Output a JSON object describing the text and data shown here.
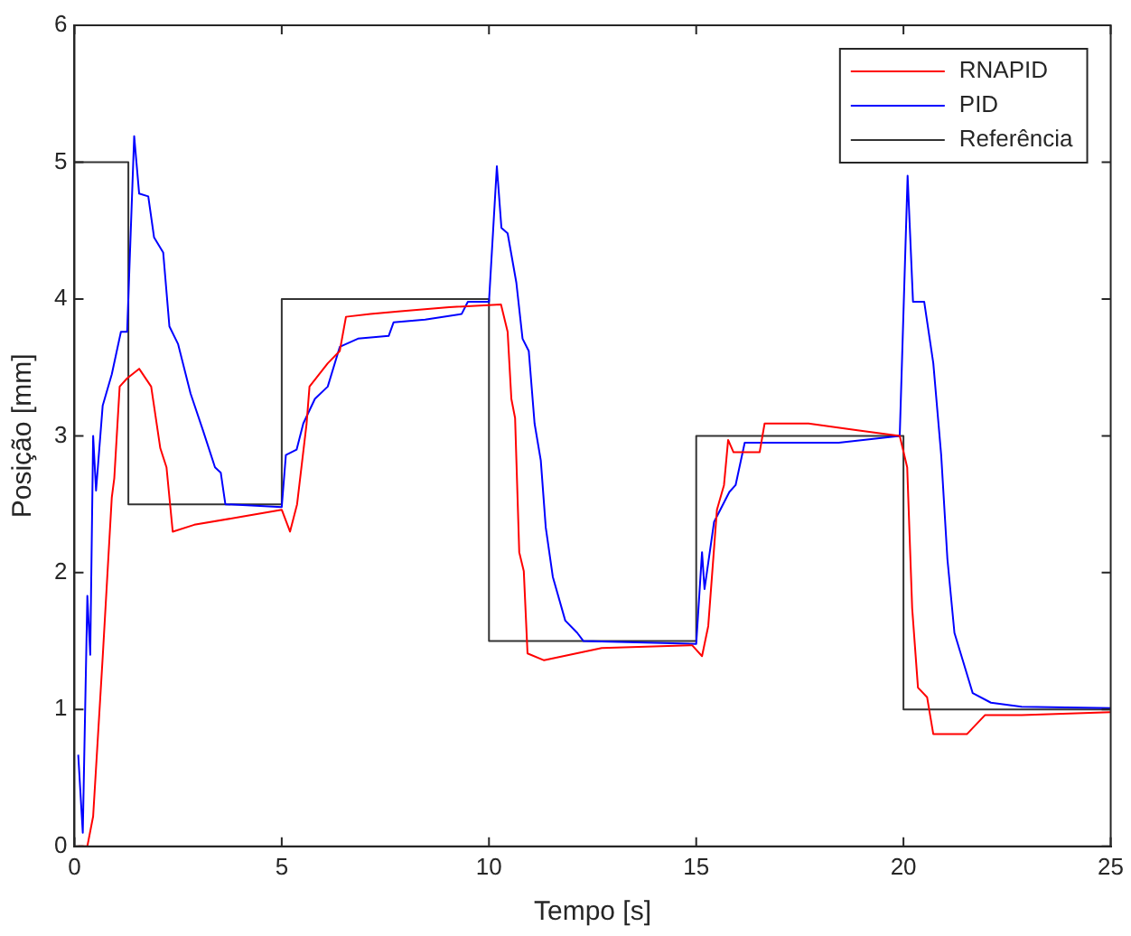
{
  "chart_data": {
    "type": "line",
    "xlabel": "Tempo [s]",
    "ylabel": "Posição [mm]",
    "xlim": [
      0,
      25
    ],
    "ylim": [
      0,
      6
    ],
    "xticks": [
      0,
      5,
      10,
      15,
      20,
      25
    ],
    "yticks": [
      0,
      1,
      2,
      3,
      4,
      5,
      6
    ],
    "grid": false,
    "legend": "top right",
    "marker": "none",
    "line_style": "solid",
    "series": [
      {
        "name": "RNAPID",
        "color": "#ff0000",
        "x": [
          0.09,
          0.31,
          0.45,
          0.68,
          0.9,
          0.96,
          1.09,
          1.27,
          1.56,
          1.85,
          2.07,
          2.22,
          2.37,
          2.89,
          4.05,
          5.0,
          5.2,
          5.37,
          5.6,
          5.67,
          6.11,
          6.4,
          6.55,
          7.14,
          7.87,
          9.04,
          10.29,
          10.45,
          10.54,
          10.63,
          10.73,
          10.84,
          10.93,
          11.33,
          12.72,
          14.9,
          15.14,
          15.29,
          15.5,
          15.67,
          15.77,
          15.9,
          16.53,
          16.65,
          17.71,
          18.89,
          19.91,
          20.09,
          20.21,
          20.35,
          20.57,
          20.72,
          21.53,
          21.97,
          22.85,
          25
        ],
        "values": [
          0,
          0,
          0.22,
          1.38,
          2.55,
          2.69,
          3.36,
          3.42,
          3.49,
          3.36,
          2.91,
          2.77,
          2.3,
          2.35,
          2.41,
          2.46,
          2.3,
          2.5,
          3.09,
          3.36,
          3.53,
          3.62,
          3.87,
          3.89,
          3.91,
          3.94,
          3.96,
          3.76,
          3.27,
          3.13,
          2.15,
          2.01,
          1.41,
          1.36,
          1.45,
          1.47,
          1.39,
          1.61,
          2.46,
          2.64,
          2.97,
          2.88,
          2.88,
          3.09,
          3.09,
          3.04,
          3.0,
          2.77,
          1.74,
          1.16,
          1.09,
          0.82,
          0.82,
          0.96,
          0.96,
          0.98
        ]
      },
      {
        "name": "PID",
        "color": "#0000ff",
        "x": [
          0.09,
          0.2,
          0.31,
          0.38,
          0.45,
          0.52,
          0.68,
          0.9,
          1.12,
          1.27,
          1.44,
          1.56,
          1.78,
          1.92,
          2.14,
          2.29,
          2.5,
          2.8,
          3.1,
          3.39,
          3.53,
          3.64,
          5.0,
          5.1,
          5.36,
          5.52,
          5.8,
          6.11,
          6.4,
          6.84,
          7.58,
          7.7,
          8.46,
          9.34,
          9.49,
          10.0,
          10.19,
          10.3,
          10.45,
          10.66,
          10.81,
          10.96,
          11.1,
          11.25,
          11.37,
          11.54,
          11.84,
          12.13,
          12.28,
          15.0,
          15.14,
          15.2,
          15.43,
          15.8,
          15.95,
          16.17,
          16.9,
          18.44,
          19.91,
          20.1,
          20.23,
          20.5,
          20.72,
          20.91,
          21.06,
          21.23,
          21.45,
          21.67,
          22.11,
          22.85,
          25
        ],
        "values": [
          0.67,
          0.1,
          1.83,
          1.4,
          3.0,
          2.6,
          3.22,
          3.45,
          3.76,
          3.76,
          5.19,
          4.77,
          4.75,
          4.45,
          4.34,
          3.8,
          3.67,
          3.31,
          3.04,
          2.77,
          2.73,
          2.5,
          2.48,
          2.86,
          2.9,
          3.09,
          3.27,
          3.36,
          3.65,
          3.71,
          3.73,
          3.83,
          3.85,
          3.89,
          3.98,
          3.98,
          4.97,
          4.52,
          4.48,
          4.12,
          3.71,
          3.62,
          3.09,
          2.82,
          2.33,
          1.97,
          1.65,
          1.56,
          1.5,
          1.48,
          2.15,
          1.88,
          2.37,
          2.59,
          2.64,
          2.95,
          2.95,
          2.95,
          3.0,
          4.9,
          3.98,
          3.98,
          3.53,
          2.86,
          2.1,
          1.56,
          1.34,
          1.12,
          1.05,
          1.02,
          1.01
        ]
      },
      {
        "name": "Referência",
        "color": "#333333",
        "x": [
          0,
          1.3,
          1.3,
          5,
          5,
          10,
          10,
          15,
          15,
          20,
          20,
          25
        ],
        "values": [
          5,
          5,
          2.5,
          2.5,
          4,
          4,
          1.5,
          1.5,
          3,
          3,
          1,
          1
        ]
      }
    ]
  }
}
